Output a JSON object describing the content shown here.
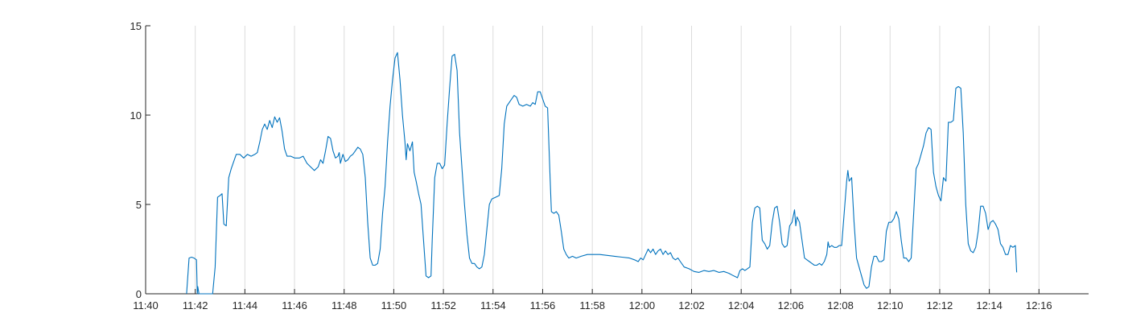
{
  "chart_data": {
    "type": "line",
    "title": "",
    "xlabel": "",
    "ylabel": "",
    "x_range_minutes": [
      0,
      38
    ],
    "ylim": [
      0,
      15
    ],
    "grid": {
      "x": true,
      "y": false
    },
    "x_ticks": [
      {
        "minute": 0,
        "label": "11:40"
      },
      {
        "minute": 2,
        "label": "11:42"
      },
      {
        "minute": 4,
        "label": "11:44"
      },
      {
        "minute": 6,
        "label": "11:46"
      },
      {
        "minute": 8,
        "label": "11:48"
      },
      {
        "minute": 10,
        "label": "11:50"
      },
      {
        "minute": 12,
        "label": "11:52"
      },
      {
        "minute": 14,
        "label": "11:54"
      },
      {
        "minute": 16,
        "label": "11:56"
      },
      {
        "minute": 18,
        "label": "11:58"
      },
      {
        "minute": 20,
        "label": "12:00"
      },
      {
        "minute": 22,
        "label": "12:02"
      },
      {
        "minute": 24,
        "label": "12:04"
      },
      {
        "minute": 26,
        "label": "12:06"
      },
      {
        "minute": 28,
        "label": "12:08"
      },
      {
        "minute": 30,
        "label": "12:10"
      },
      {
        "minute": 32,
        "label": "12:12"
      },
      {
        "minute": 34,
        "label": "12:14"
      },
      {
        "minute": 36,
        "label": "12:16"
      }
    ],
    "y_ticks": [
      0,
      5,
      10,
      15
    ],
    "series": [
      {
        "color": "#0072bd",
        "points": [
          [
            1.65,
            0
          ],
          [
            1.75,
            2.0
          ],
          [
            1.85,
            2.05
          ],
          [
            1.95,
            2.0
          ],
          [
            2.05,
            1.9
          ],
          [
            2.08,
            0
          ],
          [
            2.1,
            0.4
          ],
          [
            2.15,
            0
          ],
          [
            2.7,
            0
          ],
          [
            2.8,
            1.5
          ],
          [
            2.9,
            5.4
          ],
          [
            3.0,
            5.5
          ],
          [
            3.08,
            5.6
          ],
          [
            3.15,
            3.9
          ],
          [
            3.25,
            3.8
          ],
          [
            3.35,
            6.5
          ],
          [
            3.45,
            7.0
          ],
          [
            3.55,
            7.4
          ],
          [
            3.65,
            7.8
          ],
          [
            3.8,
            7.8
          ],
          [
            3.95,
            7.6
          ],
          [
            4.1,
            7.8
          ],
          [
            4.25,
            7.7
          ],
          [
            4.4,
            7.8
          ],
          [
            4.5,
            7.9
          ],
          [
            4.6,
            8.5
          ],
          [
            4.7,
            9.2
          ],
          [
            4.8,
            9.5
          ],
          [
            4.9,
            9.2
          ],
          [
            5.0,
            9.7
          ],
          [
            5.1,
            9.3
          ],
          [
            5.2,
            9.9
          ],
          [
            5.3,
            9.6
          ],
          [
            5.4,
            9.85
          ],
          [
            5.5,
            9.1
          ],
          [
            5.6,
            8.1
          ],
          [
            5.7,
            7.7
          ],
          [
            5.85,
            7.7
          ],
          [
            6.0,
            7.6
          ],
          [
            6.2,
            7.6
          ],
          [
            6.35,
            7.7
          ],
          [
            6.5,
            7.3
          ],
          [
            6.65,
            7.1
          ],
          [
            6.8,
            6.9
          ],
          [
            6.95,
            7.1
          ],
          [
            7.05,
            7.5
          ],
          [
            7.15,
            7.3
          ],
          [
            7.25,
            8.0
          ],
          [
            7.35,
            8.8
          ],
          [
            7.45,
            8.7
          ],
          [
            7.55,
            8.0
          ],
          [
            7.65,
            7.6
          ],
          [
            7.75,
            7.7
          ],
          [
            7.8,
            7.9
          ],
          [
            7.85,
            7.3
          ],
          [
            7.95,
            7.8
          ],
          [
            8.05,
            7.4
          ],
          [
            8.15,
            7.5
          ],
          [
            8.25,
            7.7
          ],
          [
            8.35,
            7.8
          ],
          [
            8.45,
            8.0
          ],
          [
            8.55,
            8.2
          ],
          [
            8.65,
            8.1
          ],
          [
            8.75,
            7.8
          ],
          [
            8.85,
            6.5
          ],
          [
            8.95,
            4.0
          ],
          [
            9.05,
            2.0
          ],
          [
            9.15,
            1.6
          ],
          [
            9.25,
            1.6
          ],
          [
            9.35,
            1.7
          ],
          [
            9.45,
            2.5
          ],
          [
            9.55,
            4.5
          ],
          [
            9.65,
            6.0
          ],
          [
            9.75,
            8.5
          ],
          [
            9.85,
            10.5
          ],
          [
            9.95,
            12.0
          ],
          [
            10.05,
            13.2
          ],
          [
            10.15,
            13.5
          ],
          [
            10.25,
            12.0
          ],
          [
            10.35,
            10.0
          ],
          [
            10.45,
            8.5
          ],
          [
            10.5,
            7.5
          ],
          [
            10.55,
            8.4
          ],
          [
            10.65,
            8.0
          ],
          [
            10.75,
            8.5
          ],
          [
            10.82,
            6.8
          ],
          [
            10.9,
            6.3
          ],
          [
            11.0,
            5.6
          ],
          [
            11.1,
            5.0
          ],
          [
            11.2,
            3.0
          ],
          [
            11.3,
            1.0
          ],
          [
            11.4,
            0.9
          ],
          [
            11.5,
            1.0
          ],
          [
            11.55,
            3.0
          ],
          [
            11.65,
            6.5
          ],
          [
            11.75,
            7.3
          ],
          [
            11.85,
            7.3
          ],
          [
            11.95,
            7.0
          ],
          [
            12.05,
            7.2
          ],
          [
            12.15,
            9.5
          ],
          [
            12.25,
            11.5
          ],
          [
            12.35,
            13.3
          ],
          [
            12.45,
            13.4
          ],
          [
            12.55,
            12.5
          ],
          [
            12.65,
            9.0
          ],
          [
            12.75,
            7.0
          ],
          [
            12.85,
            5.0
          ],
          [
            12.95,
            3.3
          ],
          [
            13.05,
            2.0
          ],
          [
            13.15,
            1.7
          ],
          [
            13.25,
            1.7
          ],
          [
            13.35,
            1.5
          ],
          [
            13.45,
            1.4
          ],
          [
            13.55,
            1.5
          ],
          [
            13.65,
            2.2
          ],
          [
            13.75,
            3.6
          ],
          [
            13.85,
            5.0
          ],
          [
            13.95,
            5.3
          ],
          [
            14.1,
            5.4
          ],
          [
            14.25,
            5.5
          ],
          [
            14.35,
            7.0
          ],
          [
            14.45,
            9.5
          ],
          [
            14.55,
            10.5
          ],
          [
            14.7,
            10.8
          ],
          [
            14.85,
            11.1
          ],
          [
            14.95,
            11.0
          ],
          [
            15.05,
            10.6
          ],
          [
            15.2,
            10.5
          ],
          [
            15.35,
            10.6
          ],
          [
            15.5,
            10.5
          ],
          [
            15.6,
            10.7
          ],
          [
            15.7,
            10.6
          ],
          [
            15.8,
            11.3
          ],
          [
            15.9,
            11.3
          ],
          [
            16.0,
            10.9
          ],
          [
            16.1,
            10.5
          ],
          [
            16.2,
            10.4
          ],
          [
            16.3,
            6.5
          ],
          [
            16.35,
            4.6
          ],
          [
            16.45,
            4.5
          ],
          [
            16.55,
            4.6
          ],
          [
            16.65,
            4.4
          ],
          [
            16.75,
            3.5
          ],
          [
            16.85,
            2.5
          ],
          [
            16.95,
            2.2
          ],
          [
            17.05,
            2.0
          ],
          [
            17.2,
            2.1
          ],
          [
            17.35,
            2.0
          ],
          [
            17.55,
            2.1
          ],
          [
            17.8,
            2.2
          ],
          [
            18.0,
            2.2
          ],
          [
            18.3,
            2.2
          ],
          [
            18.6,
            2.15
          ],
          [
            18.9,
            2.1
          ],
          [
            19.2,
            2.05
          ],
          [
            19.5,
            2.0
          ],
          [
            19.7,
            1.9
          ],
          [
            19.85,
            1.8
          ],
          [
            19.95,
            2.0
          ],
          [
            20.05,
            1.9
          ],
          [
            20.15,
            2.2
          ],
          [
            20.25,
            2.5
          ],
          [
            20.35,
            2.3
          ],
          [
            20.45,
            2.5
          ],
          [
            20.55,
            2.2
          ],
          [
            20.65,
            2.4
          ],
          [
            20.75,
            2.5
          ],
          [
            20.85,
            2.2
          ],
          [
            20.95,
            2.4
          ],
          [
            21.05,
            2.2
          ],
          [
            21.15,
            2.3
          ],
          [
            21.25,
            2.0
          ],
          [
            21.35,
            1.9
          ],
          [
            21.45,
            2.0
          ],
          [
            21.55,
            1.8
          ],
          [
            21.7,
            1.5
          ],
          [
            21.9,
            1.4
          ],
          [
            22.1,
            1.25
          ],
          [
            22.3,
            1.2
          ],
          [
            22.5,
            1.3
          ],
          [
            22.7,
            1.25
          ],
          [
            22.9,
            1.3
          ],
          [
            23.1,
            1.2
          ],
          [
            23.3,
            1.25
          ],
          [
            23.5,
            1.15
          ],
          [
            23.7,
            1.0
          ],
          [
            23.85,
            0.9
          ],
          [
            23.95,
            1.3
          ],
          [
            24.05,
            1.4
          ],
          [
            24.15,
            1.3
          ],
          [
            24.25,
            1.4
          ],
          [
            24.35,
            1.5
          ],
          [
            24.45,
            4.0
          ],
          [
            24.55,
            4.8
          ],
          [
            24.65,
            4.9
          ],
          [
            24.75,
            4.8
          ],
          [
            24.85,
            3.0
          ],
          [
            24.95,
            2.8
          ],
          [
            25.05,
            2.5
          ],
          [
            25.15,
            2.7
          ],
          [
            25.25,
            4.0
          ],
          [
            25.35,
            4.8
          ],
          [
            25.45,
            4.9
          ],
          [
            25.55,
            4.0
          ],
          [
            25.65,
            2.8
          ],
          [
            25.75,
            2.6
          ],
          [
            25.85,
            2.7
          ],
          [
            25.95,
            3.8
          ],
          [
            26.05,
            4.0
          ],
          [
            26.15,
            4.7
          ],
          [
            26.2,
            3.8
          ],
          [
            26.25,
            4.3
          ],
          [
            26.35,
            4.0
          ],
          [
            26.45,
            3.0
          ],
          [
            26.55,
            2.0
          ],
          [
            26.65,
            1.9
          ],
          [
            26.75,
            1.8
          ],
          [
            26.85,
            1.7
          ],
          [
            26.95,
            1.6
          ],
          [
            27.05,
            1.6
          ],
          [
            27.15,
            1.7
          ],
          [
            27.25,
            1.6
          ],
          [
            27.35,
            1.8
          ],
          [
            27.45,
            2.2
          ],
          [
            27.5,
            2.9
          ],
          [
            27.55,
            2.6
          ],
          [
            27.65,
            2.7
          ],
          [
            27.75,
            2.6
          ],
          [
            27.85,
            2.6
          ],
          [
            27.95,
            2.7
          ],
          [
            28.05,
            2.7
          ],
          [
            28.15,
            4.5
          ],
          [
            28.25,
            6.3
          ],
          [
            28.3,
            6.9
          ],
          [
            28.35,
            6.3
          ],
          [
            28.45,
            6.5
          ],
          [
            28.55,
            4.0
          ],
          [
            28.65,
            2.0
          ],
          [
            28.75,
            1.5
          ],
          [
            28.85,
            1.0
          ],
          [
            28.95,
            0.5
          ],
          [
            29.05,
            0.3
          ],
          [
            29.15,
            0.4
          ],
          [
            29.25,
            1.5
          ],
          [
            29.35,
            2.1
          ],
          [
            29.45,
            2.1
          ],
          [
            29.55,
            1.8
          ],
          [
            29.65,
            1.8
          ],
          [
            29.75,
            1.9
          ],
          [
            29.85,
            3.5
          ],
          [
            29.95,
            4.0
          ],
          [
            30.05,
            4.0
          ],
          [
            30.15,
            4.2
          ],
          [
            30.25,
            4.6
          ],
          [
            30.35,
            4.2
          ],
          [
            30.45,
            3.0
          ],
          [
            30.55,
            2.0
          ],
          [
            30.65,
            2.0
          ],
          [
            30.75,
            1.8
          ],
          [
            30.85,
            2.0
          ],
          [
            30.95,
            4.5
          ],
          [
            31.05,
            7.0
          ],
          [
            31.15,
            7.3
          ],
          [
            31.25,
            7.8
          ],
          [
            31.35,
            8.3
          ],
          [
            31.45,
            9.0
          ],
          [
            31.55,
            9.3
          ],
          [
            31.65,
            9.2
          ],
          [
            31.75,
            6.8
          ],
          [
            31.85,
            6.0
          ],
          [
            31.95,
            5.5
          ],
          [
            32.05,
            5.2
          ],
          [
            32.15,
            6.5
          ],
          [
            32.25,
            6.3
          ],
          [
            32.35,
            9.6
          ],
          [
            32.45,
            9.6
          ],
          [
            32.55,
            9.7
          ],
          [
            32.65,
            11.5
          ],
          [
            32.75,
            11.6
          ],
          [
            32.85,
            11.5
          ],
          [
            32.95,
            9.0
          ],
          [
            33.05,
            5.0
          ],
          [
            33.15,
            2.8
          ],
          [
            33.25,
            2.4
          ],
          [
            33.35,
            2.3
          ],
          [
            33.45,
            2.6
          ],
          [
            33.55,
            3.5
          ],
          [
            33.65,
            4.9
          ],
          [
            33.75,
            4.9
          ],
          [
            33.85,
            4.5
          ],
          [
            33.95,
            3.6
          ],
          [
            34.05,
            4.0
          ],
          [
            34.15,
            4.1
          ],
          [
            34.25,
            3.9
          ],
          [
            34.35,
            3.6
          ],
          [
            34.45,
            2.8
          ],
          [
            34.55,
            2.6
          ],
          [
            34.65,
            2.2
          ],
          [
            34.75,
            2.2
          ],
          [
            34.85,
            2.7
          ],
          [
            34.95,
            2.6
          ],
          [
            35.05,
            2.7
          ],
          [
            35.1,
            1.2
          ]
        ]
      }
    ]
  }
}
